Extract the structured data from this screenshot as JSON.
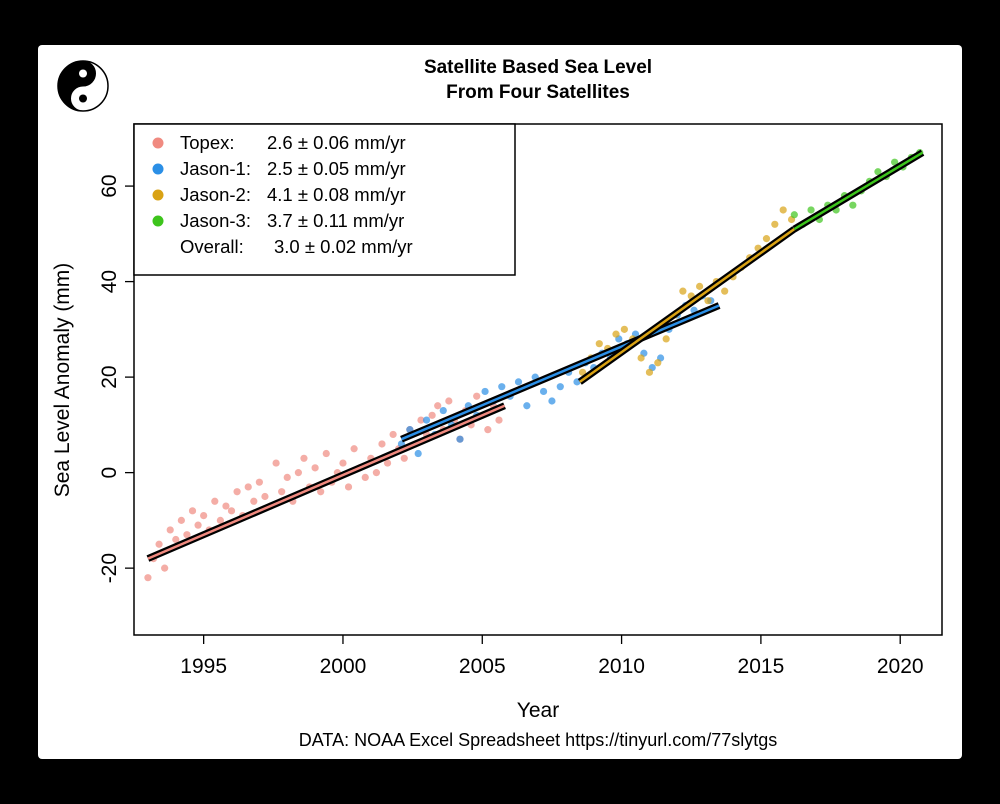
{
  "chart_data": {
    "type": "scatter",
    "title": "Satellite Based Sea Level",
    "subtitle": "From Four Satellites",
    "xlabel": "Year",
    "ylabel": "Sea Level Anomaly (mm)",
    "xlim": [
      1992.5,
      2021.5
    ],
    "ylim": [
      -34,
      73
    ],
    "x_ticks": [
      1995,
      2000,
      2005,
      2010,
      2015,
      2020
    ],
    "y_ticks": [
      -20,
      0,
      20,
      40,
      60
    ],
    "grid": false,
    "legend_position": "top-left",
    "source_note": "DATA: NOAA Excel Spreadsheet https://tinyurl.com/77slytgs",
    "legend": [
      {
        "label": "Topex:",
        "rate": "2.6 ± 0.06 mm/yr",
        "color": "#F08A80"
      },
      {
        "label": "Jason-1:",
        "rate": "2.5 ± 0.05 mm/yr",
        "color": "#2B8FE6"
      },
      {
        "label": "Jason-2:",
        "rate": "4.1 ± 0.08 mm/yr",
        "color": "#D9A214"
      },
      {
        "label": "Jason-3:",
        "rate": "3.7 ± 0.11 mm/yr",
        "color": "#3DC41C"
      },
      {
        "label": "Overall:",
        "rate": "3.0 ± 0.02 mm/yr",
        "color": ""
      }
    ],
    "series": [
      {
        "name": "Topex",
        "color": "#F08A80",
        "x": [
          1993.0,
          1993.2,
          1993.4,
          1993.6,
          1993.8,
          1994.0,
          1994.2,
          1994.4,
          1994.6,
          1994.8,
          1995.0,
          1995.2,
          1995.4,
          1995.6,
          1995.8,
          1996.0,
          1996.2,
          1996.4,
          1996.6,
          1996.8,
          1997.0,
          1997.2,
          1997.4,
          1997.6,
          1997.8,
          1998.0,
          1998.2,
          1998.4,
          1998.6,
          1998.8,
          1999.0,
          1999.2,
          1999.4,
          1999.6,
          1999.8,
          2000.0,
          2000.2,
          2000.4,
          2000.6,
          2000.8,
          2001.0,
          2001.2,
          2001.4,
          2001.6,
          2001.8,
          2002.0,
          2002.2,
          2002.4,
          2002.6,
          2002.8,
          2003.0,
          2003.2,
          2003.4,
          2003.6,
          2003.8,
          2004.0,
          2004.2,
          2004.4,
          2004.6,
          2004.8,
          2005.0,
          2005.2,
          2005.4,
          2005.6
        ],
        "y": [
          -22,
          -18,
          -15,
          -20,
          -12,
          -14,
          -10,
          -13,
          -8,
          -11,
          -9,
          -12,
          -6,
          -10,
          -7,
          -8,
          -4,
          -9,
          -3,
          -6,
          -2,
          -5,
          -7,
          2,
          -4,
          -1,
          -6,
          0,
          3,
          -3,
          1,
          -4,
          4,
          -2,
          0,
          2,
          -3,
          5,
          1,
          -1,
          3,
          0,
          6,
          2,
          8,
          5,
          3,
          9,
          6,
          11,
          8,
          12,
          14,
          9,
          15,
          11,
          7,
          13,
          10,
          16,
          12,
          9,
          14,
          11
        ]
      },
      {
        "name": "Jason-1",
        "color": "#2B8FE6",
        "x": [
          2002.1,
          2002.4,
          2002.7,
          2003.0,
          2003.3,
          2003.6,
          2003.9,
          2004.2,
          2004.5,
          2004.8,
          2005.1,
          2005.4,
          2005.7,
          2006.0,
          2006.3,
          2006.6,
          2006.9,
          2007.2,
          2007.5,
          2007.8,
          2008.1,
          2008.4,
          2008.7,
          2009.0,
          2009.3,
          2009.6,
          2009.9,
          2010.2,
          2010.5,
          2010.8,
          2011.1,
          2011.4,
          2011.7,
          2012.0,
          2012.3,
          2012.6,
          2012.9,
          2013.2
        ],
        "y": [
          6,
          9,
          4,
          11,
          8,
          13,
          10,
          7,
          14,
          12,
          17,
          15,
          18,
          16,
          19,
          14,
          20,
          17,
          15,
          18,
          21,
          19,
          23,
          22,
          25,
          24,
          28,
          27,
          29,
          25,
          22,
          24,
          30,
          33,
          35,
          34,
          37,
          36
        ]
      },
      {
        "name": "Jason-2",
        "color": "#D9A214",
        "x": [
          2008.6,
          2008.9,
          2009.2,
          2009.5,
          2009.8,
          2010.1,
          2010.4,
          2010.7,
          2011.0,
          2011.3,
          2011.6,
          2011.9,
          2012.2,
          2012.5,
          2012.8,
          2013.1,
          2013.4,
          2013.7,
          2014.0,
          2014.3,
          2014.6,
          2014.9,
          2015.2,
          2015.5,
          2015.8,
          2016.1
        ],
        "y": [
          21,
          24,
          27,
          26,
          29,
          30,
          28,
          24,
          21,
          23,
          28,
          33,
          38,
          37,
          39,
          36,
          40,
          38,
          41,
          43,
          45,
          47,
          49,
          52,
          55,
          53
        ]
      },
      {
        "name": "Jason-3",
        "color": "#3DC41C",
        "x": [
          2016.2,
          2016.5,
          2016.8,
          2017.1,
          2017.4,
          2017.7,
          2018.0,
          2018.3,
          2018.6,
          2018.9,
          2019.2,
          2019.5,
          2019.8,
          2020.1,
          2020.4,
          2020.7
        ],
        "y": [
          54,
          52,
          55,
          53,
          56,
          55,
          58,
          56,
          59,
          61,
          63,
          62,
          65,
          64,
          66,
          67
        ]
      }
    ],
    "trend_lines": [
      {
        "name": "Topex",
        "color": "#F08A80",
        "x": [
          1993.0,
          2005.8
        ],
        "y": [
          -18,
          14
        ]
      },
      {
        "name": "Jason-1",
        "color": "#2B8FE6",
        "x": [
          2002.1,
          2013.5
        ],
        "y": [
          7,
          35
        ]
      },
      {
        "name": "Jason-2",
        "color": "#D9A214",
        "x": [
          2008.5,
          2016.2
        ],
        "y": [
          19,
          51
        ]
      },
      {
        "name": "Jason-3",
        "color": "#3DC41C",
        "x": [
          2016.2,
          2020.8
        ],
        "y": [
          51,
          67
        ]
      }
    ]
  }
}
